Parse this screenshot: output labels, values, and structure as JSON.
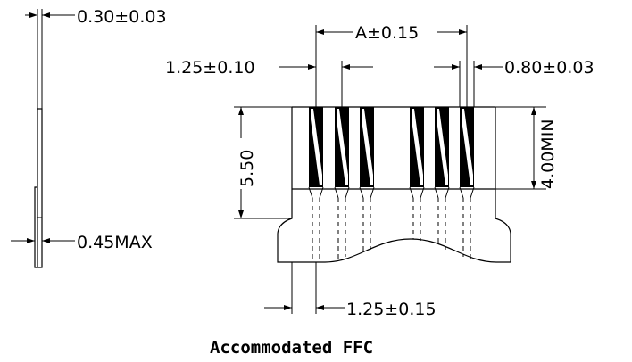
{
  "dimensions": {
    "film_thickness": "0.30±0.03",
    "pitch_count": "A±0.15",
    "contact_pitch": "1.25±0.10",
    "contact_width": "0.80±0.03",
    "stiffener_length": "5.50",
    "exposed_length": "4.00MIN",
    "total_thickness": "0.45MAX",
    "edge_offset": "1.25±0.15"
  },
  "caption": "Accommodated FFC",
  "colors": {
    "ink": "#000000",
    "paper": "#ffffff"
  }
}
